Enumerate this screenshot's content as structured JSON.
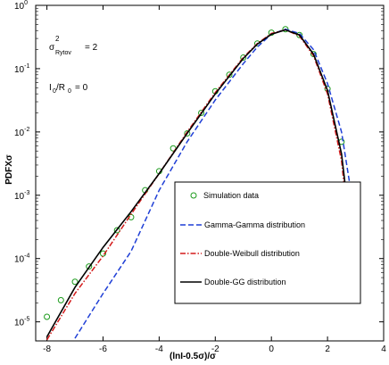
{
  "chart_data": {
    "type": "line",
    "xlabel": "(lnI-0.5σ)/σ",
    "ylabel": "PDFXσ",
    "xlim": [
      -8.4,
      4
    ],
    "ylim": [
      5e-06,
      1
    ],
    "yscale": "log",
    "x_ticks": [
      -8,
      -6,
      -4,
      -2,
      0,
      2,
      4
    ],
    "y_ticks": [
      {
        "value": 1,
        "base": "10",
        "exp": "0"
      },
      {
        "value": 0.1,
        "base": "10",
        "exp": "-1"
      },
      {
        "value": 0.01,
        "base": "10",
        "exp": "-2"
      },
      {
        "value": 0.001,
        "base": "10",
        "exp": "-3"
      },
      {
        "value": 0.0001,
        "base": "10",
        "exp": "-4"
      },
      {
        "value": 1e-05,
        "base": "10",
        "exp": "-5"
      }
    ],
    "grid": false,
    "legend_position": "lower-right",
    "annotations": {
      "sigma_sym": "σ",
      "sigma_sup": "2",
      "sigma_sub": "Rytov",
      "sigma_val": "= 2",
      "ratio_I": "I",
      "ratio_I_sub": "0",
      "ratio_slash": "/R",
      "ratio_R_sub": "0",
      "ratio_val": "= 0"
    },
    "series": [
      {
        "name": "Simulation data",
        "style": "markers",
        "color": "#1a9a1a",
        "x": [
          -8,
          -7.5,
          -7,
          -6.5,
          -6,
          -5.5,
          -5,
          -4.5,
          -4,
          -3.5,
          -3,
          -2.5,
          -2,
          -1.5,
          -1,
          -0.5,
          0,
          0.5,
          1,
          1.5,
          2,
          2.5,
          3
        ],
        "y": [
          1.2e-05,
          2.2e-05,
          4.3e-05,
          7.5e-05,
          0.00012,
          0.00028,
          0.00045,
          0.0012,
          0.0024,
          0.0055,
          0.0095,
          0.02,
          0.044,
          0.08,
          0.15,
          0.25,
          0.37,
          0.42,
          0.34,
          0.17,
          0.048,
          0.007,
          0.0005
        ]
      },
      {
        "name": "Gamma-Gamma distribution",
        "style": "dashed",
        "color": "#1f3fd6",
        "x": [
          -7,
          -6,
          -5,
          -4,
          -3,
          -2,
          -1,
          -0.5,
          0,
          0.5,
          1,
          1.5,
          2,
          2.5,
          3
        ],
        "y": [
          5.5e-06,
          2.8e-05,
          0.00013,
          0.0012,
          0.007,
          0.032,
          0.12,
          0.22,
          0.35,
          0.42,
          0.36,
          0.2,
          0.058,
          0.01,
          0.0004
        ]
      },
      {
        "name": "Double-Weibull distribution",
        "style": "dashdot",
        "color": "#d41c1c",
        "x": [
          -8,
          -7,
          -6,
          -5,
          -4,
          -3,
          -2,
          -1,
          -0.5,
          0,
          0.5,
          1,
          1.5,
          2,
          2.5,
          3
        ],
        "y": [
          5.2e-06,
          2.8e-05,
          0.00011,
          0.0005,
          0.0022,
          0.01,
          0.042,
          0.15,
          0.25,
          0.36,
          0.41,
          0.33,
          0.16,
          0.04,
          0.0035,
          2.8e-05
        ]
      },
      {
        "name": "Double-GG distribution",
        "style": "solid",
        "color": "#000000",
        "x": [
          -8,
          -7,
          -6,
          -5,
          -4,
          -3,
          -2,
          -1,
          -0.5,
          0,
          0.5,
          1,
          1.5,
          2,
          2.5,
          3
        ],
        "y": [
          5.8e-06,
          3.5e-05,
          0.00015,
          0.00055,
          0.0022,
          0.0095,
          0.04,
          0.145,
          0.245,
          0.35,
          0.41,
          0.34,
          0.17,
          0.045,
          0.0045,
          6e-05
        ]
      }
    ]
  }
}
